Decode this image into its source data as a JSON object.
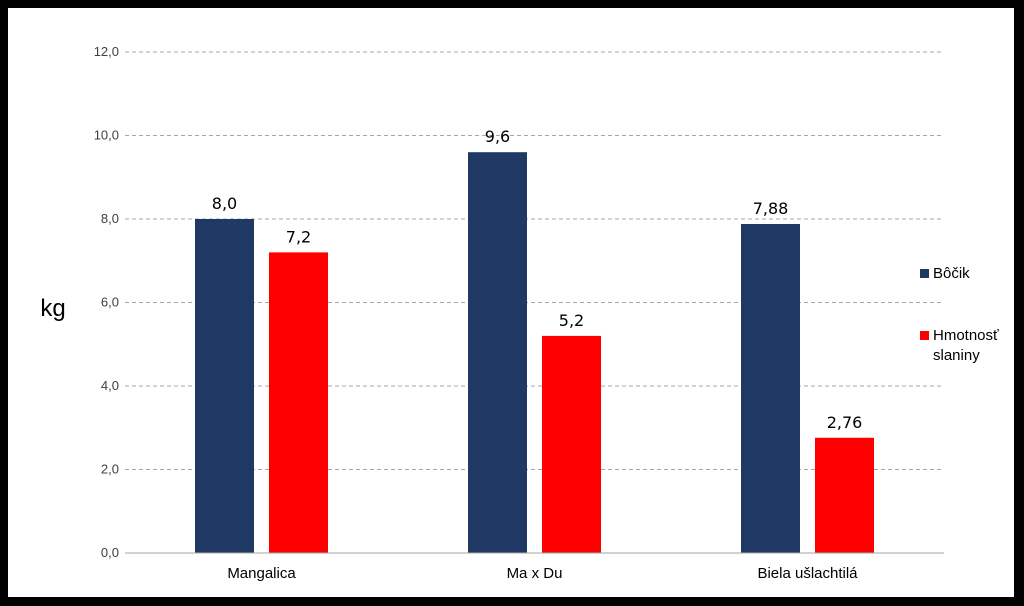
{
  "chart_data": {
    "type": "bar",
    "categories": [
      "Mangalica",
      "Ma x Du",
      "Biela ušlachtilá"
    ],
    "series": [
      {
        "name": "Bôčik",
        "values": [
          8.0,
          9.6,
          7.88
        ],
        "labels": [
          "8,0",
          "9,6",
          "7,88"
        ],
        "color": "#1f3864"
      },
      {
        "name": "Hmotnosť slaniny",
        "values": [
          7.2,
          5.2,
          2.76
        ],
        "labels": [
          "7,2",
          "5,2",
          "2,76"
        ],
        "color": "#ff0000"
      }
    ],
    "ylabel": "kg",
    "ylim": [
      0,
      12
    ],
    "yticks": [
      0,
      2,
      4,
      6,
      8,
      10,
      12
    ],
    "ytick_labels": [
      "0,0",
      "2,0",
      "4,0",
      "6,0",
      "8,0",
      "10,0",
      "12,0"
    ],
    "grid": true,
    "legend": "right",
    "legend_lines": [
      [
        "Bôčik"
      ],
      [
        "Hmotnosť",
        "slaniny"
      ]
    ]
  }
}
